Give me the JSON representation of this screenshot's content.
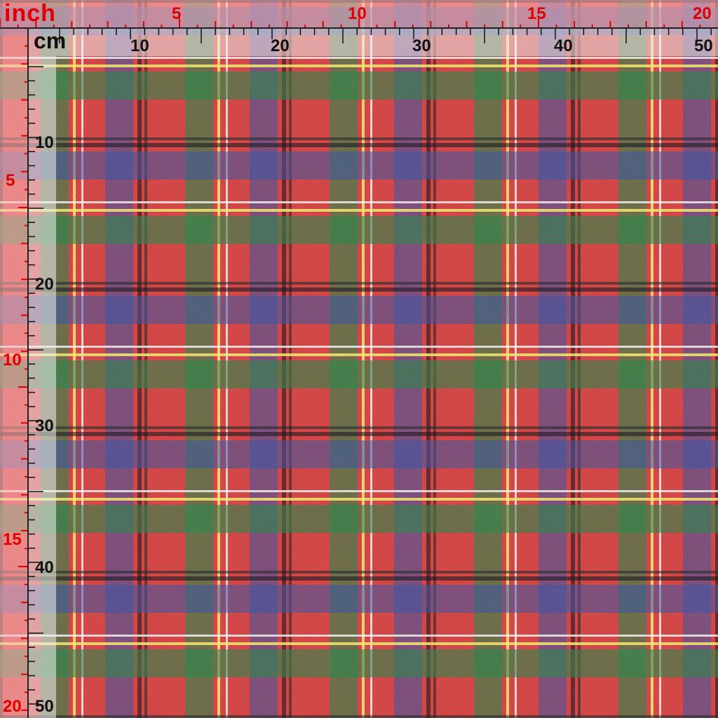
{
  "rulers": {
    "inch": {
      "unit": "inch",
      "top_labels": [
        "5",
        "10",
        "15",
        "20"
      ],
      "left_labels": [
        "5",
        "10",
        "15",
        "20"
      ],
      "color": "#e00000"
    },
    "cm": {
      "unit": "cm",
      "top_labels": [
        "10",
        "20",
        "30",
        "40",
        "50"
      ],
      "left_labels": [
        "10",
        "20",
        "30",
        "40",
        "50"
      ],
      "color": "#111111"
    }
  },
  "fabric": {
    "pattern": "tartan plaid",
    "colors": {
      "base": "#d94a4a",
      "green": "#2d8c50",
      "blue": "#3c5aaa",
      "yellow": "#faf078",
      "white": "#ffffff",
      "black": "#141e1e"
    }
  }
}
